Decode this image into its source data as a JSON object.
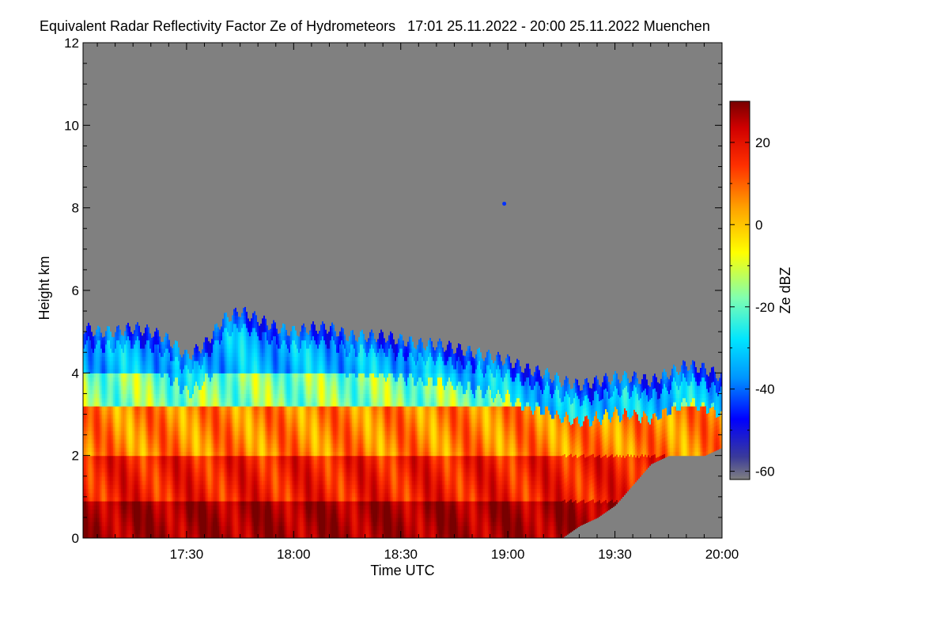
{
  "chart_data": {
    "type": "heatmap",
    "title": "Equivalent Radar Reflectivity Factor Ze of Hydrometeors   17:01 25.11.2022 - 20:00 25.11.2022 Muenchen",
    "xlabel": "Time UTC",
    "ylabel": "Height km",
    "colorbar_label": "Ze dBZ",
    "x_range_minutes": [
      1021,
      1200
    ],
    "x_ticks": [
      {
        "label": "17:30",
        "minutes": 1050
      },
      {
        "label": "18:00",
        "minutes": 1080
      },
      {
        "label": "18:30",
        "minutes": 1110
      },
      {
        "label": "19:00",
        "minutes": 1140
      },
      {
        "label": "19:30",
        "minutes": 1170
      },
      {
        "label": "20:00",
        "minutes": 1200
      }
    ],
    "ylim": [
      0,
      12
    ],
    "y_ticks": [
      0,
      2,
      4,
      6,
      8,
      10,
      12
    ],
    "colorbar_range": [
      -62,
      30
    ],
    "colorbar_ticks": [
      20,
      0,
      -20,
      -40,
      -60
    ],
    "background_color": "#808080",
    "colormap": [
      "#1a1aa0",
      "#0000ff",
      "#0096ff",
      "#00e5ff",
      "#80ffb0",
      "#ffff00",
      "#ffa000",
      "#ff3000",
      "#d00000",
      "#780000"
    ],
    "echo_top_km": [
      {
        "t": 1021,
        "h": 5.1
      },
      {
        "t": 1025,
        "h": 5.0
      },
      {
        "t": 1030,
        "h": 5.0
      },
      {
        "t": 1035,
        "h": 5.1
      },
      {
        "t": 1040,
        "h": 5.0
      },
      {
        "t": 1045,
        "h": 4.8
      },
      {
        "t": 1050,
        "h": 4.4
      },
      {
        "t": 1055,
        "h": 4.7
      },
      {
        "t": 1060,
        "h": 5.3
      },
      {
        "t": 1065,
        "h": 5.5
      },
      {
        "t": 1070,
        "h": 5.3
      },
      {
        "t": 1075,
        "h": 5.1
      },
      {
        "t": 1080,
        "h": 5.0
      },
      {
        "t": 1085,
        "h": 5.1
      },
      {
        "t": 1090,
        "h": 5.1
      },
      {
        "t": 1095,
        "h": 4.9
      },
      {
        "t": 1100,
        "h": 4.9
      },
      {
        "t": 1105,
        "h": 4.9
      },
      {
        "t": 1110,
        "h": 4.8
      },
      {
        "t": 1115,
        "h": 4.7
      },
      {
        "t": 1120,
        "h": 4.7
      },
      {
        "t": 1125,
        "h": 4.6
      },
      {
        "t": 1130,
        "h": 4.5
      },
      {
        "t": 1135,
        "h": 4.4
      },
      {
        "t": 1140,
        "h": 4.3
      },
      {
        "t": 1145,
        "h": 4.1
      },
      {
        "t": 1150,
        "h": 4.0
      },
      {
        "t": 1155,
        "h": 3.8
      },
      {
        "t": 1160,
        "h": 3.7
      },
      {
        "t": 1165,
        "h": 3.8
      },
      {
        "t": 1170,
        "h": 3.9
      },
      {
        "t": 1175,
        "h": 3.9
      },
      {
        "t": 1180,
        "h": 3.8
      },
      {
        "t": 1185,
        "h": 4.0
      },
      {
        "t": 1190,
        "h": 4.2
      },
      {
        "t": 1195,
        "h": 4.1
      },
      {
        "t": 1200,
        "h": 3.9
      }
    ],
    "echo_base_km": [
      {
        "t": 1021,
        "h": 0
      },
      {
        "t": 1155,
        "h": 0
      },
      {
        "t": 1160,
        "h": 0.3
      },
      {
        "t": 1165,
        "h": 0.5
      },
      {
        "t": 1170,
        "h": 0.8
      },
      {
        "t": 1175,
        "h": 1.3
      },
      {
        "t": 1180,
        "h": 1.8
      },
      {
        "t": 1185,
        "h": 2.0
      },
      {
        "t": 1190,
        "h": 2.0
      },
      {
        "t": 1195,
        "h": 2.0
      },
      {
        "t": 1200,
        "h": 2.2
      }
    ],
    "layers": [
      {
        "name": "surface_max",
        "h_from": 0,
        "h_to": 0.9,
        "ze_dbz": 25
      },
      {
        "name": "rain",
        "h_from": 0.9,
        "h_to": 2.0,
        "ze_dbz": 15
      },
      {
        "name": "melting_layer",
        "h_from": 2.0,
        "h_to": 3.2,
        "ze_dbz": 5
      },
      {
        "name": "ice",
        "h_from": 3.2,
        "h_to": 4.0,
        "ze_dbz": -15
      },
      {
        "name": "cloud_top",
        "h_from": 4.0,
        "h_to": 5.5,
        "ze_dbz": -30
      }
    ],
    "isolated_echo": {
      "t": 1139,
      "h": 8.1,
      "ze_dbz": -40
    }
  }
}
